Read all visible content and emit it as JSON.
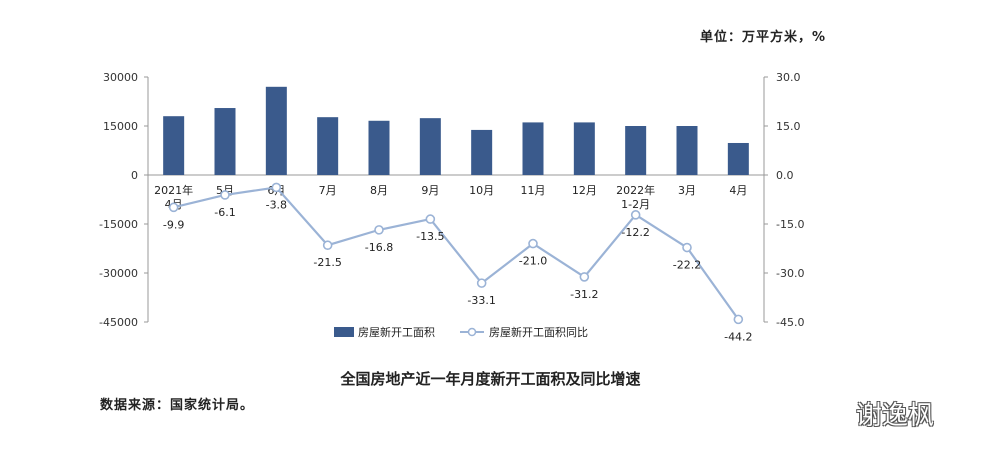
{
  "unit_label": "单位：万平方米，%",
  "caption": "全国房地产近一年月度新开工面积及同比增速",
  "source": "数据来源：国家统计局。",
  "watermark": "谢逸枫",
  "chart_data": {
    "type": "bar",
    "categories": [
      "2021年\n4月",
      "5月",
      "6月",
      "7月",
      "8月",
      "9月",
      "10月",
      "11月",
      "12月",
      "2022年\n1-2月",
      "3月",
      "4月"
    ],
    "series": [
      {
        "name": "房屋新开工面积",
        "type": "bar",
        "axis": "left",
        "color": "#3a5a8c",
        "values": [
          18000,
          20500,
          27000,
          17700,
          16600,
          17400,
          13800,
          16100,
          16100,
          15000,
          15000,
          9800
        ]
      },
      {
        "name": "房屋新开工面积同比",
        "type": "line",
        "axis": "right",
        "color": "#9bb3d6",
        "values": [
          -9.9,
          -6.1,
          -3.8,
          -21.5,
          -16.8,
          -13.5,
          -33.1,
          -21.0,
          -31.2,
          -12.2,
          -22.2,
          -44.2
        ],
        "labels": [
          "-9.9",
          "-6.1",
          "-3.8",
          "-21.5",
          "-16.8",
          "-13.5",
          "-33.1",
          "-21.0",
          "-31.2",
          "-12.2",
          "-22.2",
          "-44.2"
        ]
      }
    ],
    "y_left": {
      "range": [
        -45000,
        30000
      ],
      "ticks": [
        30000,
        15000,
        0,
        -15000,
        -30000,
        -45000
      ],
      "tick_labels": [
        "30000",
        "15000",
        "0",
        "-15000",
        "-30000",
        "-45000"
      ]
    },
    "y_right": {
      "range": [
        -45,
        30
      ],
      "ticks": [
        30,
        15,
        0,
        -15,
        -30,
        -45
      ],
      "tick_labels": [
        "30.0",
        "15.0",
        "0.0",
        "-15.0",
        "-30.0",
        "-45.0"
      ]
    },
    "grid": false,
    "legend_position": "bottom"
  }
}
